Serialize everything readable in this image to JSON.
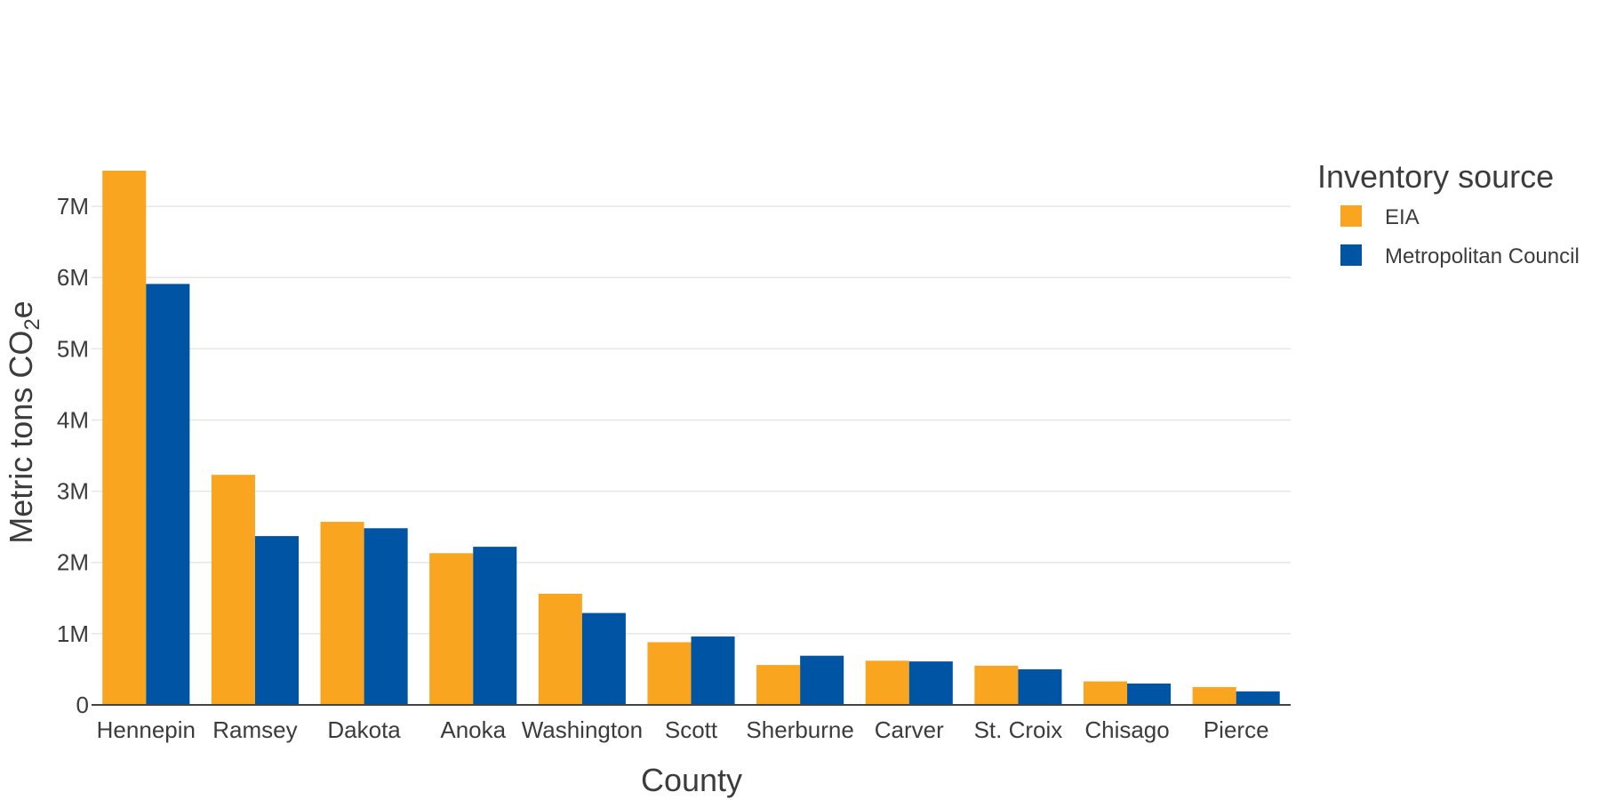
{
  "chart_data": {
    "type": "bar",
    "title": "",
    "xlabel": "County",
    "ylabel": {
      "main": "Metric tons CO",
      "sub": "2",
      "tail": "e"
    },
    "ylim": [
      0,
      7500000
    ],
    "ytick_values": [
      0,
      1000000,
      2000000,
      3000000,
      4000000,
      5000000,
      6000000,
      7000000
    ],
    "ytick_labels": [
      "0",
      "1M",
      "2M",
      "3M",
      "4M",
      "5M",
      "6M",
      "7M"
    ],
    "categories": [
      "Hennepin",
      "Ramsey",
      "Dakota",
      "Anoka",
      "Washington",
      "Scott",
      "Sherburne",
      "Carver",
      "St. Croix",
      "Chisago",
      "Pierce"
    ],
    "series": [
      {
        "name": "EIA",
        "color": "#F9A51F",
        "values": [
          7500000,
          3230000,
          2570000,
          2130000,
          1560000,
          880000,
          560000,
          620000,
          550000,
          330000,
          250000
        ]
      },
      {
        "name": "Metropolitan Council",
        "color": "#0054A4",
        "values": [
          5910000,
          2370000,
          2480000,
          2220000,
          1290000,
          960000,
          690000,
          610000,
          500000,
          300000,
          190000
        ]
      }
    ],
    "legend": {
      "title": "Inventory source",
      "position": "right-top"
    },
    "grid": true
  }
}
